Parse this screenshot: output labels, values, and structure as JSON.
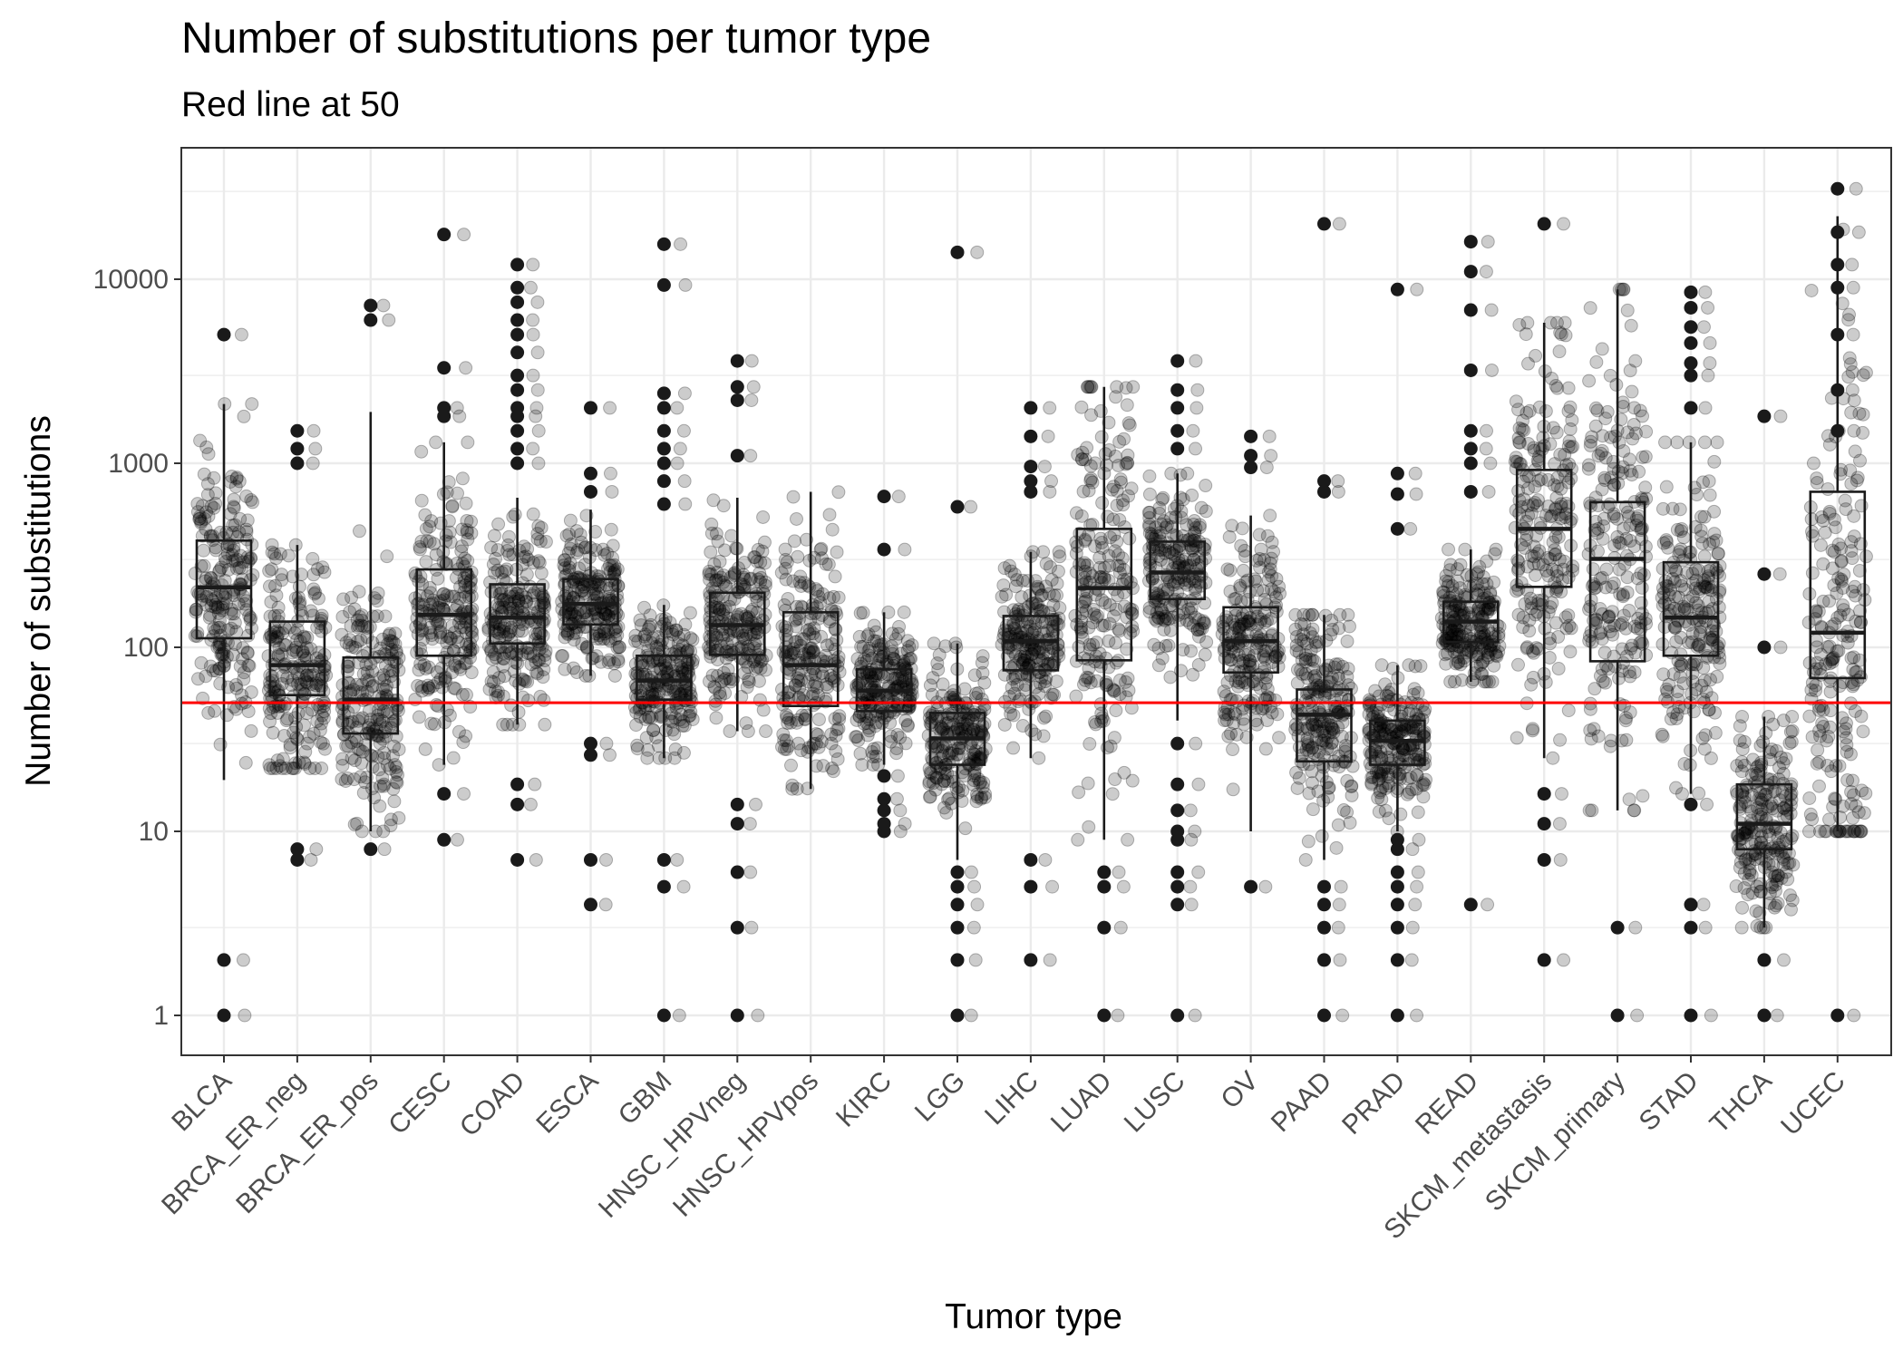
{
  "chart_data": {
    "type": "box",
    "title": "Number of substitutions per tumor type",
    "subtitle": "Red line at 50",
    "xlabel": "Tumor type",
    "ylabel": "Number of substitutions",
    "y_scale": "log10",
    "ylim": [
      0.6,
      50000
    ],
    "yticks": [
      1,
      10,
      100,
      1000,
      10000
    ],
    "ytick_labels": [
      "1",
      "10",
      "100",
      "1000",
      "10000"
    ],
    "reference_line": {
      "y": 50,
      "color": "#ff0000"
    },
    "grid": true,
    "point_color": "#000000",
    "box_color": "#1a1a1a",
    "categories": [
      "BLCA",
      "BRCA_ER_neg",
      "BRCA_ER_pos",
      "CESC",
      "COAD",
      "ESCA",
      "GBM",
      "HNSC_HPVneg",
      "HNSC_HPVpos",
      "KIRC",
      "LGG",
      "LIHC",
      "LUAD",
      "LUSC",
      "OV",
      "PAAD",
      "PRAD",
      "READ",
      "SKCM_metastasis",
      "SKCM_primary",
      "STAD",
      "THCA",
      "UCEC"
    ],
    "boxes": [
      {
        "lower_whisker": 19,
        "q1": 112,
        "median": 212,
        "q3": 380,
        "upper_whisker": 2100
      },
      {
        "lower_whisker": 22,
        "q1": 55,
        "median": 80,
        "q3": 138,
        "upper_whisker": 360
      },
      {
        "lower_whisker": 10,
        "q1": 34,
        "median": 52,
        "q3": 88,
        "upper_whisker": 1900
      },
      {
        "lower_whisker": 23,
        "q1": 90,
        "median": 150,
        "q3": 265,
        "upper_whisker": 1300
      },
      {
        "lower_whisker": 38,
        "q1": 105,
        "median": 145,
        "q3": 220,
        "upper_whisker": 650
      },
      {
        "lower_whisker": 70,
        "q1": 133,
        "median": 172,
        "q3": 235,
        "upper_whisker": 560
      },
      {
        "lower_whisker": 25,
        "q1": 52,
        "median": 66,
        "q3": 90,
        "upper_whisker": 170
      },
      {
        "lower_whisker": 35,
        "q1": 91,
        "median": 132,
        "q3": 198,
        "upper_whisker": 650
      },
      {
        "lower_whisker": 17,
        "q1": 48,
        "median": 80,
        "q3": 155,
        "upper_whisker": 700
      },
      {
        "lower_whisker": 23,
        "q1": 45,
        "median": 58,
        "q3": 76,
        "upper_whisker": 155
      },
      {
        "lower_whisker": 7,
        "q1": 23,
        "median": 32,
        "q3": 44,
        "upper_whisker": 105
      },
      {
        "lower_whisker": 25,
        "q1": 75,
        "median": 108,
        "q3": 148,
        "upper_whisker": 330
      },
      {
        "lower_whisker": 9,
        "q1": 85,
        "median": 210,
        "q3": 440,
        "upper_whisker": 2600
      },
      {
        "lower_whisker": 40,
        "q1": 183,
        "median": 255,
        "q3": 375,
        "upper_whisker": 880
      },
      {
        "lower_whisker": 10,
        "q1": 73,
        "median": 108,
        "q3": 165,
        "upper_whisker": 520
      },
      {
        "lower_whisker": 7,
        "q1": 24,
        "median": 43,
        "q3": 59,
        "upper_whisker": 150
      },
      {
        "lower_whisker": 10,
        "q1": 23,
        "median": 31,
        "q3": 40,
        "upper_whisker": 80
      },
      {
        "lower_whisker": 65,
        "q1": 107,
        "median": 138,
        "q3": 177,
        "upper_whisker": 340
      },
      {
        "lower_whisker": 25,
        "q1": 213,
        "median": 440,
        "q3": 920,
        "upper_whisker": 5800
      },
      {
        "lower_whisker": 13,
        "q1": 84,
        "median": 302,
        "q3": 615,
        "upper_whisker": 8800
      },
      {
        "lower_whisker": 16,
        "q1": 90,
        "median": 145,
        "q3": 290,
        "upper_whisker": 1300
      },
      {
        "lower_whisker": 3,
        "q1": 8,
        "median": 11,
        "q3": 18,
        "upper_whisker": 42
      },
      {
        "lower_whisker": 10,
        "q1": 68,
        "median": 120,
        "q3": 700,
        "upper_whisker": 22000
      }
    ],
    "outliers": [
      [
        1,
        2,
        5000
      ],
      [
        7,
        8,
        1000,
        1200,
        1500
      ],
      [
        8,
        6000,
        7200
      ],
      [
        9,
        16,
        17500,
        3300,
        2000,
        1800
      ],
      [
        7,
        14,
        18,
        12000,
        9000,
        7500,
        6000,
        5000,
        4000,
        3000,
        2500,
        2000,
        1800,
        1500,
        1200,
        1000
      ],
      [
        4,
        7,
        26,
        30,
        2000,
        880,
        700
      ],
      [
        1,
        5,
        7,
        15500,
        9300,
        2400,
        2000,
        1500,
        1200,
        1000,
        800,
        600
      ],
      [
        1,
        3,
        6,
        11,
        14,
        3600,
        2600,
        2200,
        1100
      ],
      [],
      [
        10,
        11,
        13,
        15,
        20,
        340,
        660
      ],
      [
        1,
        2,
        3,
        4,
        5,
        6,
        14000,
        580
      ],
      [
        2,
        5,
        7,
        2000,
        1400,
        960,
        800,
        700
      ],
      [
        1,
        3,
        5,
        6
      ],
      [
        1,
        4,
        5,
        6,
        9,
        10,
        13,
        18,
        30,
        3600,
        2500,
        2000,
        1500,
        1200
      ],
      [
        5,
        1400,
        1100,
        950
      ],
      [
        1,
        2,
        3,
        4,
        5,
        800,
        700,
        20000
      ],
      [
        1,
        2,
        3,
        4,
        5,
        6,
        8,
        9,
        880,
        680,
        440,
        8800
      ],
      [
        4,
        16000,
        11000,
        6800,
        3200,
        1500,
        1200,
        1000,
        700
      ],
      [
        2,
        7,
        11,
        16,
        20000
      ],
      [
        1,
        3
      ],
      [
        1,
        3,
        4,
        14,
        8500,
        7000,
        5500,
        4500,
        3500,
        3000,
        2000
      ],
      [
        1,
        2,
        1800,
        250,
        100
      ],
      [
        1,
        31000,
        18000,
        12000,
        9000,
        5000,
        2500,
        1500
      ]
    ]
  }
}
